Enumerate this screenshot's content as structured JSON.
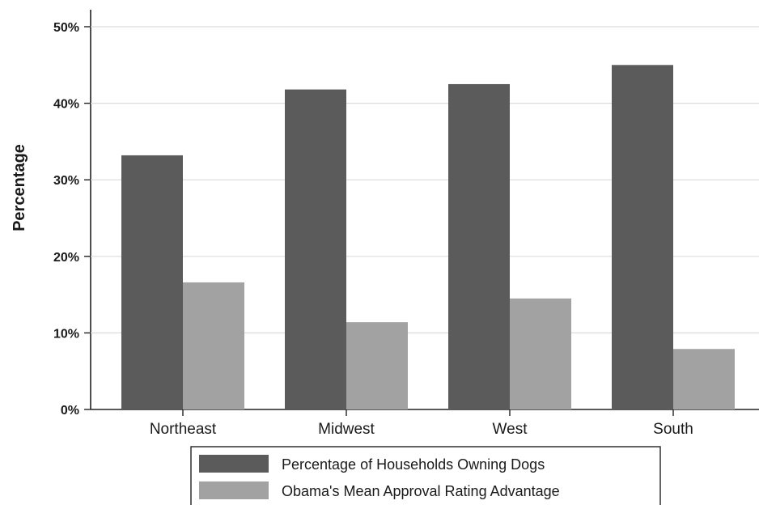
{
  "chart_data": {
    "type": "bar",
    "ylabel": "Percentage",
    "xlabel": "",
    "categories": [
      "Northeast",
      "Midwest",
      "West",
      "South"
    ],
    "series": [
      {
        "name": "Percentage of Households Owning Dogs",
        "values": [
          33.2,
          41.8,
          42.5,
          45.0
        ],
        "color": "#5b5b5b"
      },
      {
        "name": "Obama's Mean Approval Rating Advantage",
        "values": [
          16.6,
          11.4,
          14.5,
          7.9
        ],
        "color": "#a2a2a2"
      }
    ],
    "ylim": [
      0,
      50
    ],
    "yticks": [
      0,
      10,
      20,
      30,
      40,
      50
    ],
    "ytick_labels": [
      "0%",
      "10%",
      "20%",
      "30%",
      "40%",
      "50%"
    ],
    "grid": true,
    "legend_position": "bottom"
  }
}
